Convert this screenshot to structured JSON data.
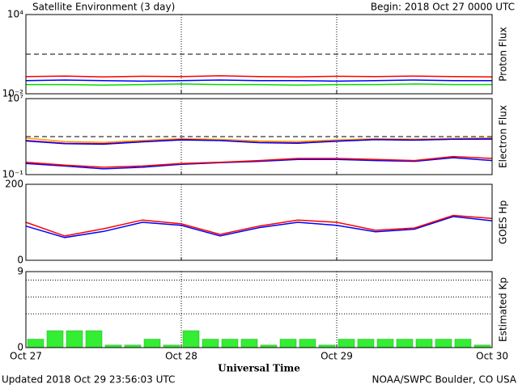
{
  "header": {
    "title": "Satellite Environment (3 day)",
    "begin": "Begin:  2018 Oct 27 0000 UTC"
  },
  "footer": {
    "updated": "Updated 2018 Oct 29 23:56:03 UTC",
    "credit": "NOAA/SWPC Boulder, CO USA"
  },
  "chart_data": [
    {
      "type": "line",
      "ylabel": "Proton Flux",
      "log": true,
      "ylim": [
        0.01,
        10000
      ],
      "yticks": [
        {
          "value": 10000,
          "label": "10⁴"
        },
        {
          "value": 0.01,
          "label": "10⁻²"
        }
      ],
      "reference_lines": [
        10
      ],
      "x": [
        0,
        6,
        12,
        18,
        24,
        30,
        36,
        42,
        48,
        54,
        60,
        66,
        72
      ],
      "series": [
        {
          "color": "#ff0000",
          "values": [
            0.2,
            0.22,
            0.19,
            0.21,
            0.2,
            0.23,
            0.2,
            0.19,
            0.21,
            0.2,
            0.22,
            0.2,
            0.19
          ]
        },
        {
          "color": "#0000ff",
          "values": [
            0.1,
            0.11,
            0.1,
            0.09,
            0.1,
            0.11,
            0.1,
            0.1,
            0.09,
            0.1,
            0.11,
            0.1,
            0.1
          ]
        },
        {
          "color": "#00dd00",
          "values": [
            0.05,
            0.05,
            0.045,
            0.05,
            0.055,
            0.05,
            0.05,
            0.045,
            0.05,
            0.05,
            0.055,
            0.05,
            0.05
          ]
        }
      ]
    },
    {
      "type": "line",
      "ylabel": "Electron Flux",
      "log": true,
      "ylim": [
        0.1,
        10000000
      ],
      "yticks": [
        {
          "value": 10000000,
          "label": "10⁷"
        },
        {
          "value": 0.1,
          "label": "10⁻¹"
        }
      ],
      "reference_lines": [
        1000
      ],
      "x": [
        0,
        6,
        12,
        18,
        24,
        30,
        36,
        42,
        48,
        54,
        60,
        66,
        72
      ],
      "series": [
        {
          "color": "#ff9900",
          "values": [
            700,
            300,
            250,
            400,
            600,
            500,
            350,
            300,
            450,
            600,
            550,
            650,
            700
          ]
        },
        {
          "color": "#ff0000",
          "values": [
            400,
            200,
            180,
            300,
            500,
            400,
            250,
            220,
            350,
            500,
            450,
            550,
            600
          ]
        },
        {
          "color": "#0000ff",
          "values": [
            350,
            180,
            160,
            280,
            450,
            380,
            230,
            200,
            330,
            480,
            420,
            520,
            550
          ]
        },
        {
          "color": "#0000ff",
          "values": [
            1.5,
            0.8,
            0.4,
            0.6,
            1.2,
            1.8,
            2.5,
            4,
            4,
            3,
            2.5,
            6,
            3
          ]
        },
        {
          "color": "#ff0000",
          "values": [
            2,
            1,
            0.6,
            0.8,
            1.5,
            2,
            3,
            5,
            5,
            4,
            3,
            8,
            5
          ]
        }
      ]
    },
    {
      "type": "line",
      "ylabel": "GOES Hp",
      "log": false,
      "ylim": [
        0,
        200
      ],
      "yticks": [
        200,
        0
      ],
      "x": [
        0,
        6,
        12,
        18,
        24,
        30,
        36,
        42,
        48,
        54,
        60,
        66,
        72
      ],
      "series": [
        {
          "color": "#0000ff",
          "values": [
            90,
            60,
            76,
            100,
            92,
            64,
            86,
            100,
            92,
            75,
            82,
            115,
            104
          ]
        },
        {
          "color": "#ff0000",
          "values": [
            100,
            64,
            83,
            106,
            96,
            68,
            90,
            106,
            100,
            79,
            85,
            118,
            110
          ]
        }
      ]
    },
    {
      "type": "bar",
      "ylabel": "Estimated Kp",
      "log": false,
      "ylim": [
        0,
        9
      ],
      "yticks": [
        9,
        0
      ],
      "grid_lines": [
        4,
        6,
        8
      ],
      "color": "#33ee33",
      "x": [
        1.5,
        4.5,
        7.5,
        10.5,
        13.5,
        16.5,
        19.5,
        22.5,
        25.5,
        28.5,
        31.5,
        34.5,
        37.5,
        40.5,
        43.5,
        46.5,
        49.5,
        52.5,
        55.5,
        58.5,
        61.5,
        64.5,
        67.5,
        70.5
      ],
      "values": [
        1,
        2,
        2,
        2,
        0.3,
        0.3,
        1,
        0.3,
        2,
        1,
        1,
        1,
        0.3,
        1,
        1,
        0.3,
        1,
        1,
        1,
        1,
        1,
        1,
        1,
        0.3
      ],
      "xlabel": "Universal Time",
      "xlim": [
        0,
        72
      ],
      "xticks": [
        {
          "value": 0,
          "label": "Oct 27"
        },
        {
          "value": 24,
          "label": "Oct 28"
        },
        {
          "value": 48,
          "label": "Oct 29"
        },
        {
          "value": 72,
          "label": "Oct 30"
        }
      ]
    }
  ]
}
